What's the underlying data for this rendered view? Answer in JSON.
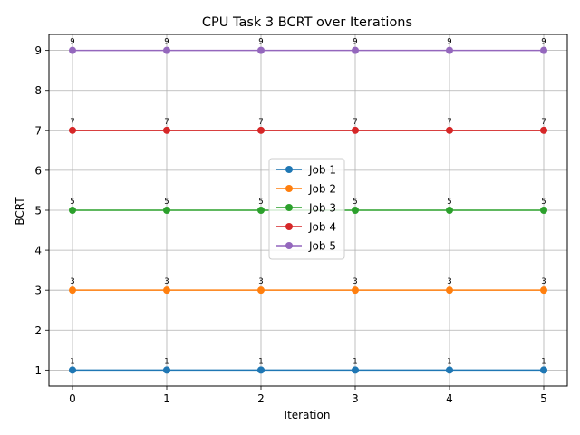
{
  "chart_data": {
    "type": "line",
    "title": "CPU Task 3 BCRT over Iterations",
    "xlabel": "Iteration",
    "ylabel": "BCRT",
    "x": [
      0,
      1,
      2,
      3,
      4,
      5
    ],
    "xlim": [
      -0.25,
      5.25
    ],
    "ylim": [
      0.6,
      9.4
    ],
    "xticks": [
      "0",
      "1",
      "2",
      "3",
      "4",
      "5"
    ],
    "yticks": [
      "1",
      "2",
      "3",
      "4",
      "5",
      "6",
      "7",
      "8",
      "9"
    ],
    "grid": true,
    "legend_position": "center",
    "series": [
      {
        "name": "Job 1",
        "color": "#1f77b4",
        "values": [
          1,
          1,
          1,
          1,
          1,
          1
        ],
        "labels": [
          "1",
          "1",
          "1",
          "1",
          "1",
          "1"
        ]
      },
      {
        "name": "Job 2",
        "color": "#ff7f0e",
        "values": [
          3,
          3,
          3,
          3,
          3,
          3
        ],
        "labels": [
          "3",
          "3",
          "3",
          "3",
          "3",
          "3"
        ]
      },
      {
        "name": "Job 3",
        "color": "#2ca02c",
        "values": [
          5,
          5,
          5,
          5,
          5,
          5
        ],
        "labels": [
          "5",
          "5",
          "5",
          "5",
          "5",
          "5"
        ]
      },
      {
        "name": "Job 4",
        "color": "#d62728",
        "values": [
          7,
          7,
          7,
          7,
          7,
          7
        ],
        "labels": [
          "7",
          "7",
          "7",
          "7",
          "7",
          "7"
        ]
      },
      {
        "name": "Job 5",
        "color": "#9467bd",
        "values": [
          9,
          9,
          9,
          9,
          9,
          9
        ],
        "labels": [
          "9",
          "9",
          "9",
          "9",
          "9",
          "9"
        ]
      }
    ]
  }
}
